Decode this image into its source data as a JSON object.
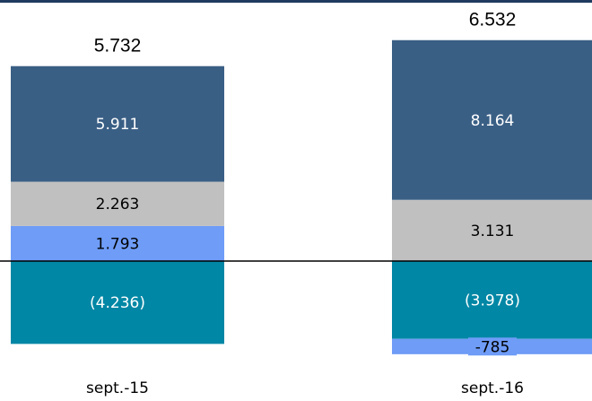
{
  "chart_data": {
    "type": "stacked_bar",
    "categories": [
      "sept.-15",
      "sept.-16"
    ],
    "series": [
      {
        "color": "#3a5f85",
        "label_color": "#ffffff",
        "values": [
          5911,
          8164
        ],
        "value_labels": [
          "5.911",
          "8.164"
        ]
      },
      {
        "color": "#c0c0c0",
        "label_color": "#000000",
        "values": [
          2263,
          3131
        ],
        "value_labels": [
          "2.263",
          "3.131"
        ]
      },
      {
        "color": "#6e9cf7",
        "label_color": "#000000",
        "values": [
          1793,
          -785
        ],
        "value_labels": [
          "1.793",
          "-785"
        ]
      },
      {
        "color": "#0087a5",
        "label_color": "#ffffff",
        "values": [
          -4236,
          -3978
        ],
        "value_labels": [
          "(4.236)",
          "(3.978)"
        ]
      }
    ],
    "totals": {
      "values": [
        5732,
        6532
      ],
      "value_labels": [
        "5.732",
        "6.532"
      ]
    }
  }
}
